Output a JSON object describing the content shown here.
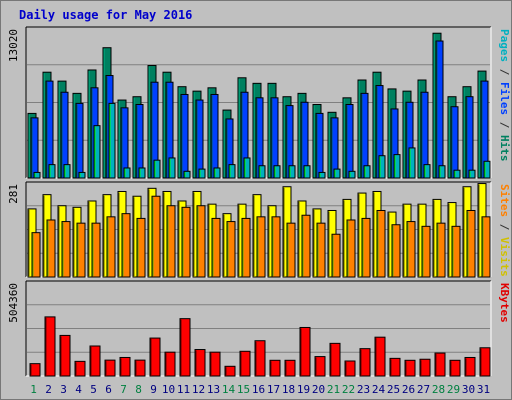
{
  "title": "Daily usage for May 2016",
  "legend": {
    "top": [
      {
        "label": "Pages",
        "color": "#00b0c0"
      },
      {
        "label": " / ",
        "color": "#333333"
      },
      {
        "label": "Files",
        "color": "#0040ff"
      },
      {
        "label": " / ",
        "color": "#333333"
      },
      {
        "label": "Hits",
        "color": "#008060"
      }
    ],
    "middle": [
      {
        "label": "Sites",
        "color": "#ff8000"
      },
      {
        "label": " / ",
        "color": "#333333"
      },
      {
        "label": "Visits",
        "color": "#d0c000"
      }
    ],
    "bottom": [
      {
        "label": "KBytes",
        "color": "#e00000"
      }
    ]
  },
  "chart_data": [
    {
      "type": "bar",
      "name": "top",
      "categories": [
        "1",
        "2",
        "3",
        "4",
        "5",
        "6",
        "7",
        "8",
        "9",
        "10",
        "11",
        "12",
        "13",
        "14",
        "15",
        "16",
        "17",
        "18",
        "19",
        "20",
        "21",
        "22",
        "23",
        "24",
        "25",
        "26",
        "27",
        "28",
        "29",
        "30",
        "31"
      ],
      "weekend_days": [
        "1",
        "7",
        "8",
        "14",
        "15",
        "21",
        "22",
        "28",
        "29"
      ],
      "ymax_label": "13020",
      "ylim": [
        0,
        13020
      ],
      "series": [
        {
          "name": "Hits",
          "color": "#008060",
          "values": [
            5800,
            9500,
            8700,
            7600,
            9700,
            11700,
            7000,
            7300,
            10100,
            9500,
            8200,
            7800,
            8100,
            6100,
            9000,
            8500,
            8500,
            7300,
            7600,
            6600,
            5900,
            7200,
            8800,
            9500,
            8000,
            7800,
            8800,
            13000,
            7300,
            8200,
            9600
          ]
        },
        {
          "name": "Files",
          "color": "#0040ff",
          "values": [
            5400,
            8700,
            7700,
            6700,
            8100,
            9200,
            6300,
            6600,
            8600,
            8600,
            7500,
            7000,
            7500,
            5300,
            7700,
            7200,
            7200,
            6500,
            6800,
            5800,
            5400,
            6600,
            7600,
            8300,
            6200,
            6800,
            7700,
            12300,
            6400,
            7300,
            8700
          ]
        },
        {
          "name": "Pages",
          "color": "#00b0c0",
          "values": [
            500,
            1200,
            1200,
            500,
            4700,
            6700,
            900,
            900,
            1600,
            1800,
            600,
            800,
            900,
            1200,
            1800,
            1100,
            1100,
            1100,
            1100,
            500,
            800,
            600,
            1100,
            2000,
            2100,
            2700,
            1200,
            1100,
            700,
            700,
            1500
          ]
        }
      ]
    },
    {
      "type": "bar",
      "name": "middle",
      "categories": [
        "1",
        "2",
        "3",
        "4",
        "5",
        "6",
        "7",
        "8",
        "9",
        "10",
        "11",
        "12",
        "13",
        "14",
        "15",
        "16",
        "17",
        "18",
        "19",
        "20",
        "21",
        "22",
        "23",
        "24",
        "25",
        "26",
        "27",
        "28",
        "29",
        "30",
        "31"
      ],
      "ymax_label": "281",
      "ylim": [
        0,
        281
      ],
      "series": [
        {
          "name": "Visits",
          "color": "#ffff00",
          "values": [
            215,
            260,
            225,
            220,
            240,
            260,
            270,
            255,
            280,
            270,
            240,
            270,
            230,
            200,
            230,
            260,
            225,
            285,
            240,
            215,
            210,
            245,
            265,
            270,
            205,
            230,
            230,
            245,
            235,
            285,
            295
          ]
        },
        {
          "name": "Sites",
          "color": "#ff8000",
          "values": [
            140,
            180,
            175,
            170,
            170,
            190,
            200,
            185,
            255,
            225,
            220,
            225,
            185,
            175,
            185,
            190,
            190,
            170,
            195,
            170,
            135,
            180,
            185,
            210,
            165,
            175,
            160,
            170,
            160,
            210,
            190
          ]
        }
      ]
    },
    {
      "type": "bar",
      "name": "bottom",
      "categories": [
        "1",
        "2",
        "3",
        "4",
        "5",
        "6",
        "7",
        "8",
        "9",
        "10",
        "11",
        "12",
        "13",
        "14",
        "15",
        "16",
        "17",
        "18",
        "19",
        "20",
        "21",
        "22",
        "23",
        "24",
        "25",
        "26",
        "27",
        "28",
        "29",
        "30",
        "31"
      ],
      "ymax_label": "504360",
      "ylim": [
        0,
        504360
      ],
      "series": [
        {
          "name": "KBytes",
          "color": "#ff0000",
          "values": [
            70000,
            335000,
            230000,
            83000,
            170000,
            90000,
            105000,
            90000,
            215000,
            135000,
            325000,
            150000,
            135000,
            55000,
            140000,
            200000,
            89000,
            89000,
            275000,
            110000,
            185000,
            85000,
            155000,
            220000,
            100000,
            89000,
            95000,
            130000,
            89000,
            105000,
            160000
          ]
        }
      ]
    }
  ]
}
